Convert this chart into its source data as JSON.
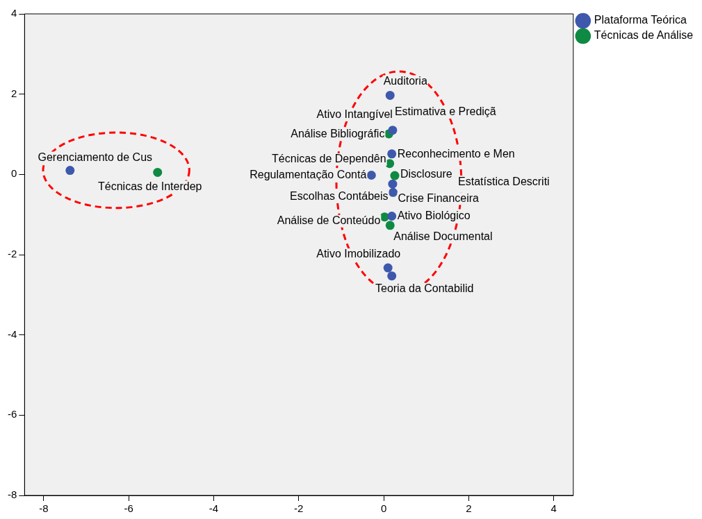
{
  "chart_data": {
    "type": "scatter",
    "xlim": [
      -8.45,
      4.46
    ],
    "ylim": [
      -8,
      4
    ],
    "xticks": [
      -8,
      -6,
      -4,
      -2,
      0,
      2,
      4
    ],
    "yticks": [
      -8,
      -6,
      -4,
      -2,
      0,
      2,
      4
    ],
    "legend": "top right",
    "marker": "circle",
    "series": [
      {
        "name": "Plataforma Teórica",
        "color": "#3e58ac",
        "x": [
          -7.38,
          0.15,
          0.21,
          0.19,
          -0.29,
          0.21,
          0.22,
          0.19,
          0.1,
          0.19
        ],
        "values": [
          0.1,
          1.97,
          1.1,
          0.51,
          -0.02,
          -0.24,
          -0.45,
          -1.04,
          -2.33,
          -2.53
        ]
      },
      {
        "name": "Técnicas de Análise",
        "color": "#0e8a42",
        "x": [
          -5.32,
          0.12,
          0.14,
          0.26,
          0.02,
          0.15
        ],
        "values": [
          0.05,
          1.01,
          0.27,
          -0.03,
          -1.06,
          -1.27
        ]
      }
    ],
    "annotations": [
      {
        "text": "Gerenciamento de Cus",
        "x": -7.38,
        "y": 0.1
      },
      {
        "text": "Técnicas de Interdep",
        "x": -5.32,
        "y": 0.05
      },
      {
        "text": "Auditoria",
        "x": 0.15,
        "y": 1.97
      },
      {
        "text": "Ativo Intangível",
        "x": 0.21,
        "y": 1.1
      },
      {
        "text": "Estimativa e Prediçã",
        "x": 0.21,
        "y": 1.1
      },
      {
        "text": "Análise Bibliográfic",
        "x": 0.12,
        "y": 1.01
      },
      {
        "text": "Técnicas de Dependên",
        "x": 0.14,
        "y": 0.27
      },
      {
        "text": "Reconhecimento e Men",
        "x": 0.19,
        "y": 0.51
      },
      {
        "text": "Regulamentação Contá",
        "x": -0.29,
        "y": -0.02
      },
      {
        "text": "Disclosure",
        "x": 0.26,
        "y": -0.03
      },
      "Estatística Descriti",
      {
        "text": "Escolhas Contábeis",
        "x": 0.22,
        "y": -0.45
      },
      {
        "text": "Crise Financeira",
        "x": 0.22,
        "y": -0.45
      },
      {
        "text": "Análise de Conteúdo",
        "x": 0.02,
        "y": -1.06
      },
      {
        "text": "Ativo Biológico",
        "x": 0.19,
        "y": -1.04
      },
      {
        "text": "Análise Documental",
        "x": 0.15,
        "y": -1.27
      },
      {
        "text": "Ativo Imobilizado",
        "x": 0.1,
        "y": -2.33
      },
      {
        "text": "Teoria da Contabilid",
        "x": 0.19,
        "y": -2.53
      }
    ]
  }
}
